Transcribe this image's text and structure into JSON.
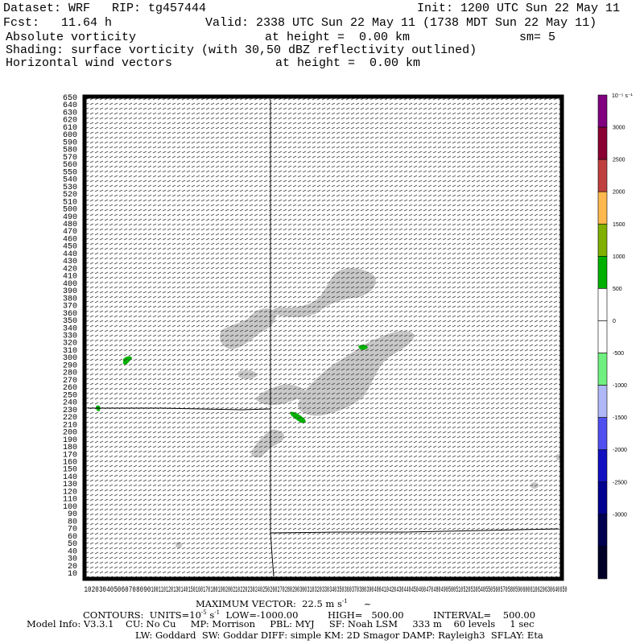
{
  "header": {
    "dataset_line": "Dataset: WRF   RIP: tg457444",
    "init_line": "Init: 1200 UTC Sun 22 May 11",
    "fcst_line": "Fcst:   11.64 h",
    "valid_line": "Valid: 2338 UTC Sun 22 May 11 (1738 MDT Sun 22 May 11)",
    "field_name": "Absolute vorticity",
    "field_height": "at height =  0.00 km",
    "smoothing": "sm= 5",
    "shading_line": "Shading: surface vorticity (with 30,50 dBZ reflectivity outlined)",
    "vector_name": "Horizontal wind vectors",
    "vector_height": "at height =  0.00 km"
  },
  "footer": {
    "max_vector_label": "MAXIMUM VECTOR:  22.5 m s",
    "max_vector_sup": "-1",
    "contours_label": "CONTOURS:  UNITS=10",
    "contours_exp": "-5",
    "contours_unit": " s",
    "contours_unit_sup": "-1",
    "contours_rest": "  LOW=-1000.00          HIGH=   500.00          INTERVAL=    500.00",
    "model_info": "Model Info: V3.3.1    CU: No Cu     MP: Morrison     PBL: MYJ     SF: Noah LSM     333 m    60 levels     1 sec",
    "model_info2": "LW: Goddard  SW: Goddar DIFF: simple KM: 2D Smagor DAMP: Rayleigh3  SFLAY: Eta"
  },
  "map": {
    "y_axis": {
      "min": 10,
      "max": 650,
      "step": 10
    },
    "x_axis": {
      "min": 10,
      "max": 650,
      "step": 10
    },
    "colorbar": {
      "unit_label": "10⁻⁵ s⁻¹",
      "labels": [
        "3000",
        "2500",
        "2000",
        "1500",
        "1000",
        "500",
        "0",
        "-500",
        "-1000",
        "-1500",
        "-2000",
        "-2500",
        "-3000"
      ],
      "colors": [
        "#800080",
        "#8b0033",
        "#c04040",
        "#ffb84d",
        "#80b000",
        "#00b000",
        "#ffffff",
        "#ffffff",
        "#70f080",
        "#b0b8f8",
        "#5050f0",
        "#1010c0",
        "#000090",
        "#000050",
        "#000028"
      ]
    },
    "shade_color": "#c8c8c8",
    "positive_color": "#00b400"
  }
}
